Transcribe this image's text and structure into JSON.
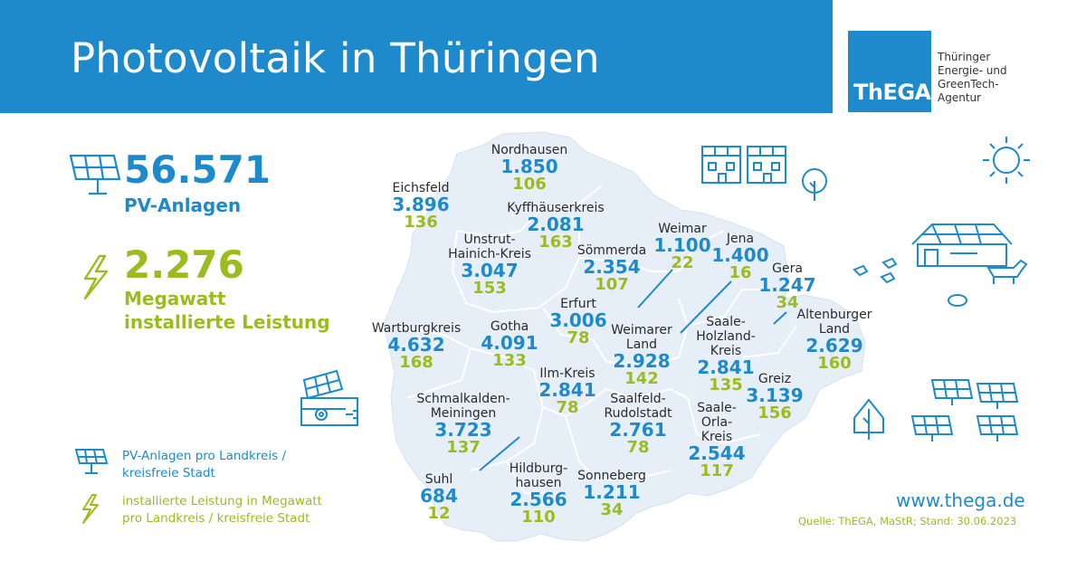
{
  "title": "Photovoltaik in Thüringen",
  "logo": {
    "text": "ThEGA",
    "desc": [
      "Thüringer",
      "Energie- und",
      "GreenTech-",
      "Agentur"
    ]
  },
  "stats": {
    "pv_count": "56.571",
    "pv_label": "PV-Anlagen",
    "mw_value": "2.276",
    "mw_label_1": "Megawatt",
    "mw_label_2": "installierte Leistung"
  },
  "regions": [
    {
      "name": [
        "Nordhausen"
      ],
      "pv": "1.850",
      "mw": "106"
    },
    {
      "name": [
        "Eichsfeld"
      ],
      "pv": "3.896",
      "mw": "136"
    },
    {
      "name": [
        "Kyffhäuserkreis"
      ],
      "pv": "2.081",
      "mw": "163"
    },
    {
      "name": [
        "Unstrut-",
        "Hainich-Kreis"
      ],
      "pv": "3.047",
      "mw": "153"
    },
    {
      "name": [
        "Sömmerda"
      ],
      "pv": "2.354",
      "mw": "107"
    },
    {
      "name": [
        "Weimar"
      ],
      "pv": "1.100",
      "mw": "22"
    },
    {
      "name": [
        "Jena"
      ],
      "pv": "1.400",
      "mw": "16"
    },
    {
      "name": [
        "Gera"
      ],
      "pv": "1.247",
      "mw": "34"
    },
    {
      "name": [
        "Altenburger",
        "Land"
      ],
      "pv": "2.629",
      "mw": "160"
    },
    {
      "name": [
        "Erfurt"
      ],
      "pv": "3.006",
      "mw": "78"
    },
    {
      "name": [
        "Weimarer",
        "Land"
      ],
      "pv": "2.928",
      "mw": "142"
    },
    {
      "name": [
        "Saale-",
        "Holzland-",
        "Kreis"
      ],
      "pv": "2.841",
      "mw": "135"
    },
    {
      "name": [
        "Wartburgkreis"
      ],
      "pv": "4.632",
      "mw": "168"
    },
    {
      "name": [
        "Gotha"
      ],
      "pv": "4.091",
      "mw": "133"
    },
    {
      "name": [
        "Ilm-Kreis"
      ],
      "pv": "2.841",
      "mw": "78"
    },
    {
      "name": [
        "Greiz"
      ],
      "pv": "3.139",
      "mw": "156"
    },
    {
      "name": [
        "Schmalkalden-",
        "Meiningen"
      ],
      "pv": "3.723",
      "mw": "137"
    },
    {
      "name": [
        "Saalfeld-",
        "Rudolstadt"
      ],
      "pv": "2.761",
      "mw": "78"
    },
    {
      "name": [
        "Saale-",
        "Orla-",
        "Kreis"
      ],
      "pv": "2.544",
      "mw": "117"
    },
    {
      "name": [
        "Suhl"
      ],
      "pv": "684",
      "mw": "12"
    },
    {
      "name": [
        "Hildburg-",
        "hausen"
      ],
      "pv": "2.566",
      "mw": "110"
    },
    {
      "name": [
        "Sonneberg"
      ],
      "pv": "1.211",
      "mw": "34"
    }
  ],
  "legend": {
    "pv_1": "PV-Anlagen pro Landkreis /",
    "pv_2": "kreisfreie Stadt",
    "mw_1": "installierte Leistung in Megawatt",
    "mw_2": "pro Landkreis / kreisfreie Stadt"
  },
  "footer": {
    "url": "www.thega.de",
    "source": "Quelle: ThEGA, MaStR; Stand: 30.06.2023"
  },
  "colors": {
    "primary_blue": "#1e8acb",
    "accent_green": "#9bbc1e",
    "map_fill": "#e6eef8"
  },
  "icons": [
    "solar-panel-icon",
    "lightning-icon",
    "solar-carport-icon",
    "building-icon",
    "tree-icon",
    "sun-icon",
    "barn-icon",
    "cow-icon",
    "chicken-icon",
    "pig-icon"
  ]
}
